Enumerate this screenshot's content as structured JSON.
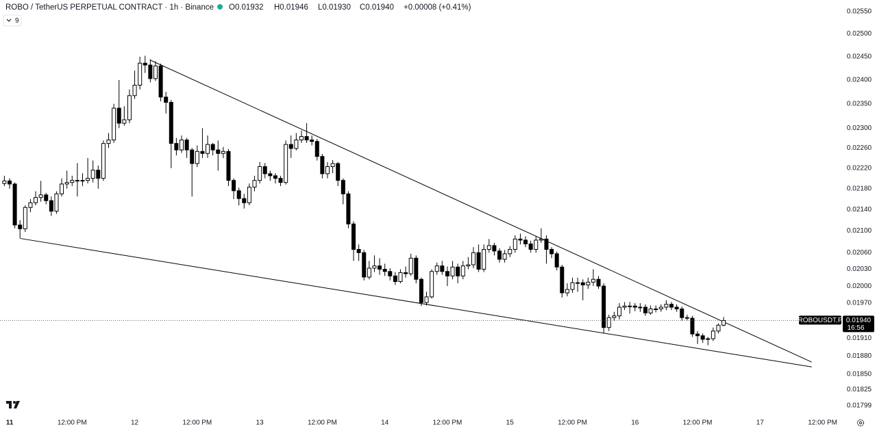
{
  "chart_data": {
    "type": "candlestick",
    "title": "ROBO / TetherUS PERPETUAL CONTRACT · 1h · Binance",
    "ohlc_labels": [
      "O0.01932",
      "H0.01946",
      "L0.01930",
      "C0.01940",
      "+0.00008 (+0.41%)"
    ],
    "indicator_toggle": "9",
    "symbol_label": "ROBOUSDT.P",
    "countdown": "16:56",
    "last_price": {
      "value": 0.0194,
      "label": "0.01940"
    },
    "log_scale": true,
    "grid": false,
    "up_color": "#ffffff",
    "down_color": "#000000",
    "wick_color": "#000000",
    "xlim": [
      -1.84,
      159.6
    ],
    "xticks": [
      {
        "value": 0,
        "label": "11"
      },
      {
        "value": 12,
        "label": "12:00 PM"
      },
      {
        "value": 24,
        "label": "12"
      },
      {
        "value": 36,
        "label": "12:00 PM"
      },
      {
        "value": 48,
        "label": "13"
      },
      {
        "value": 60,
        "label": "12:00 PM"
      },
      {
        "value": 72,
        "label": "14"
      },
      {
        "value": 84,
        "label": "12:00 PM"
      },
      {
        "value": 96,
        "label": "15"
      },
      {
        "value": 108,
        "label": "12:00 PM"
      },
      {
        "value": 120,
        "label": "16"
      },
      {
        "value": 132,
        "label": "12:00 PM"
      },
      {
        "value": 144,
        "label": "17"
      },
      {
        "value": 156,
        "label": "12:00 PM"
      }
    ],
    "ylim": [
      0.01785,
      0.02576
    ],
    "yticks": [
      {
        "value": 0.0255,
        "label": "0.02550"
      },
      {
        "value": 0.025,
        "label": "0.02500"
      },
      {
        "value": 0.0245,
        "label": "0.02450"
      },
      {
        "value": 0.024,
        "label": "0.02400"
      },
      {
        "value": 0.0235,
        "label": "0.02350"
      },
      {
        "value": 0.023,
        "label": "0.02300"
      },
      {
        "value": 0.0226,
        "label": "0.02260"
      },
      {
        "value": 0.0222,
        "label": "0.02220"
      },
      {
        "value": 0.0218,
        "label": "0.02180"
      },
      {
        "value": 0.0214,
        "label": "0.02140"
      },
      {
        "value": 0.021,
        "label": "0.02100"
      },
      {
        "value": 0.0206,
        "label": "0.02060"
      },
      {
        "value": 0.0203,
        "label": "0.02030"
      },
      {
        "value": 0.02,
        "label": "0.02000"
      },
      {
        "value": 0.0197,
        "label": "0.01970"
      },
      {
        "value": 0.0191,
        "label": "0.01910"
      },
      {
        "value": 0.0188,
        "label": "0.01880"
      },
      {
        "value": 0.0185,
        "label": "0.01850"
      },
      {
        "value": 0.01825,
        "label": "0.01825"
      },
      {
        "value": 0.01799,
        "label": "0.01799"
      }
    ],
    "x": [
      -1,
      0,
      1,
      2,
      3,
      4,
      5,
      6,
      7,
      8,
      9,
      10,
      11,
      12,
      13,
      14,
      15,
      16,
      17,
      18,
      19,
      20,
      21,
      22,
      23,
      24,
      25,
      26,
      27,
      28,
      29,
      30,
      31,
      32,
      33,
      34,
      35,
      36,
      37,
      38,
      39,
      40,
      41,
      42,
      43,
      44,
      45,
      46,
      47,
      48,
      49,
      50,
      51,
      52,
      53,
      54,
      55,
      56,
      57,
      58,
      59,
      60,
      61,
      62,
      63,
      64,
      65,
      66,
      67,
      68,
      69,
      70,
      71,
      72,
      73,
      74,
      75,
      76,
      77,
      78,
      79,
      80,
      81,
      82,
      83,
      84,
      85,
      86,
      87,
      88,
      89,
      90,
      91,
      92,
      93,
      94,
      95,
      96,
      97,
      98,
      99,
      100,
      101,
      102,
      103,
      104,
      105,
      106,
      107,
      108,
      109,
      110,
      111,
      112,
      113,
      114,
      115,
      116,
      117,
      118,
      119,
      120,
      121,
      122,
      123,
      124,
      125,
      126,
      127,
      128,
      129,
      130,
      131,
      132,
      133,
      134,
      135,
      136,
      137
    ],
    "open": [
      0.0219,
      0.02195,
      0.02189,
      0.02111,
      0.02104,
      0.02144,
      0.02153,
      0.02163,
      0.02168,
      0.02157,
      0.02137,
      0.0217,
      0.02189,
      0.02192,
      0.02196,
      0.02195,
      0.02196,
      0.022,
      0.02216,
      0.022,
      0.02269,
      0.02276,
      0.02341,
      0.0231,
      0.02317,
      0.02367,
      0.02389,
      0.02436,
      0.02432,
      0.02403,
      0.0243,
      0.02364,
      0.02353,
      0.02269,
      0.02256,
      0.02276,
      0.02256,
      0.02229,
      0.02253,
      0.02249,
      0.02267,
      0.02256,
      0.02249,
      0.02253,
      0.02196,
      0.02176,
      0.02161,
      0.02153,
      0.02183,
      0.02196,
      0.02223,
      0.02209,
      0.02205,
      0.022,
      0.02192,
      0.02267,
      0.02259,
      0.02276,
      0.02283,
      0.02276,
      0.02273,
      0.02243,
      0.02209,
      0.02223,
      0.02229,
      0.02196,
      0.0217,
      0.02113,
      0.02066,
      0.0206,
      0.02016,
      0.02032,
      0.02036,
      0.0203,
      0.02026,
      0.02018,
      0.02008,
      0.02024,
      0.02022,
      0.0205,
      0.02012,
      0.01971,
      0.01981,
      0.02026,
      0.02036,
      0.02026,
      0.02018,
      0.02034,
      0.02018,
      0.02036,
      0.02038,
      0.0206,
      0.0203,
      0.02066,
      0.02073,
      0.02063,
      0.02048,
      0.02058,
      0.02066,
      0.02085,
      0.02083,
      0.02076,
      0.02066,
      0.02083,
      0.02085,
      0.02066,
      0.02058,
      0.02034,
      0.01988,
      0.01994,
      0.02006,
      0.02006,
      0.02002,
      0.02007,
      0.02012,
      0.02,
      0.01928,
      0.01945,
      0.01948,
      0.01963,
      0.01965,
      0.01965,
      0.01963,
      0.01963,
      0.01953,
      0.0196,
      0.0196,
      0.01963,
      0.01968,
      0.01963,
      0.0196,
      0.01945,
      0.01944,
      0.01917,
      0.01914,
      0.01908,
      0.01909,
      0.01922,
      0.01932
    ],
    "high": [
      0.02205,
      0.022,
      0.02192,
      0.0212,
      0.02148,
      0.0216,
      0.02175,
      0.02195,
      0.02172,
      0.02165,
      0.02175,
      0.022,
      0.02215,
      0.02205,
      0.0223,
      0.0221,
      0.0224,
      0.02235,
      0.02225,
      0.02275,
      0.0229,
      0.0235,
      0.024,
      0.02345,
      0.0238,
      0.0242,
      0.0245,
      0.02452,
      0.02445,
      0.0244,
      0.02435,
      0.02375,
      0.02358,
      0.0228,
      0.02285,
      0.0228,
      0.0226,
      0.02265,
      0.023,
      0.02285,
      0.0227,
      0.02275,
      0.02262,
      0.02258,
      0.022,
      0.02182,
      0.0217,
      0.0219,
      0.02205,
      0.02232,
      0.0223,
      0.02215,
      0.0221,
      0.02205,
      0.02275,
      0.02285,
      0.0229,
      0.02295,
      0.0231,
      0.02285,
      0.02278,
      0.02248,
      0.02232,
      0.02236,
      0.02232,
      0.022,
      0.02175,
      0.02118,
      0.02075,
      0.02065,
      0.02045,
      0.02055,
      0.0205,
      0.0204,
      0.02032,
      0.02025,
      0.0203,
      0.02035,
      0.02058,
      0.02055,
      0.02015,
      0.0199,
      0.0203,
      0.02042,
      0.02045,
      0.02035,
      0.02045,
      0.0204,
      0.02045,
      0.02052,
      0.0207,
      0.02075,
      0.02075,
      0.02085,
      0.02078,
      0.02068,
      0.02065,
      0.02072,
      0.02092,
      0.02095,
      0.0209,
      0.02082,
      0.0209,
      0.02105,
      0.02092,
      0.0207,
      0.02062,
      0.02038,
      0.02005,
      0.02015,
      0.02015,
      0.02012,
      0.02015,
      0.0203,
      0.02018,
      0.02005,
      0.0195,
      0.01955,
      0.0197,
      0.01972,
      0.01972,
      0.0197,
      0.0197,
      0.01968,
      0.01966,
      0.01966,
      0.01968,
      0.01975,
      0.01972,
      0.01968,
      0.01964,
      0.0195,
      0.01948,
      0.01922,
      0.01918,
      0.01912,
      0.01928,
      0.01935,
      0.01946
    ],
    "low": [
      0.02185,
      0.0218,
      0.02105,
      0.02086,
      0.02098,
      0.02135,
      0.02148,
      0.02155,
      0.0215,
      0.02128,
      0.02132,
      0.02165,
      0.0218,
      0.02185,
      0.02165,
      0.02185,
      0.0219,
      0.02192,
      0.0218,
      0.02195,
      0.0226,
      0.0227,
      0.023,
      0.02305,
      0.0231,
      0.0236,
      0.0238,
      0.02415,
      0.02395,
      0.02398,
      0.02355,
      0.0233,
      0.0222,
      0.02245,
      0.0225,
      0.0224,
      0.02165,
      0.02222,
      0.0224,
      0.0224,
      0.02245,
      0.02215,
      0.0224,
      0.02185,
      0.0216,
      0.02148,
      0.02142,
      0.02148,
      0.02175,
      0.0219,
      0.022,
      0.02195,
      0.0219,
      0.02185,
      0.02188,
      0.0224,
      0.02255,
      0.0227,
      0.0227,
      0.02265,
      0.02235,
      0.022,
      0.022,
      0.0221,
      0.02185,
      0.0215,
      0.02105,
      0.02045,
      0.02045,
      0.0201,
      0.02012,
      0.02025,
      0.0202,
      0.02018,
      0.0201,
      0.02002,
      0.02005,
      0.02015,
      0.02018,
      0.02005,
      0.01965,
      0.01966,
      0.01978,
      0.0202,
      0.0202,
      0.02,
      0.02012,
      0.02005,
      0.02012,
      0.0203,
      0.02032,
      0.02025,
      0.02025,
      0.0206,
      0.02055,
      0.02042,
      0.02042,
      0.02052,
      0.0206,
      0.02075,
      0.0207,
      0.0206,
      0.0206,
      0.02078,
      0.0204,
      0.0205,
      0.02028,
      0.0198,
      0.01982,
      0.01988,
      0.0199,
      0.01975,
      0.01995,
      0.02,
      0.01995,
      0.01918,
      0.01922,
      0.0194,
      0.01942,
      0.01958,
      0.01952,
      0.01956,
      0.01955,
      0.01948,
      0.0195,
      0.01954,
      0.01955,
      0.01958,
      0.01958,
      0.01955,
      0.0194,
      0.0194,
      0.01912,
      0.019,
      0.01902,
      0.01898,
      0.01905,
      0.01918,
      0.0193
    ],
    "close": [
      0.02195,
      0.02189,
      0.02111,
      0.02104,
      0.02144,
      0.02153,
      0.02163,
      0.02168,
      0.02157,
      0.02137,
      0.0217,
      0.02189,
      0.02192,
      0.02196,
      0.02195,
      0.02196,
      0.022,
      0.02216,
      0.022,
      0.02269,
      0.02276,
      0.02341,
      0.0231,
      0.02317,
      0.02367,
      0.02389,
      0.02436,
      0.02432,
      0.02403,
      0.0243,
      0.02364,
      0.02353,
      0.02269,
      0.02256,
      0.02276,
      0.02256,
      0.02229,
      0.02253,
      0.02249,
      0.02267,
      0.02256,
      0.02249,
      0.02253,
      0.02196,
      0.02176,
      0.02161,
      0.02153,
      0.02183,
      0.02196,
      0.02223,
      0.02209,
      0.02205,
      0.022,
      0.02192,
      0.02267,
      0.02259,
      0.02276,
      0.02283,
      0.02276,
      0.02273,
      0.02243,
      0.02209,
      0.02223,
      0.02229,
      0.02196,
      0.0217,
      0.02113,
      0.02066,
      0.0206,
      0.02016,
      0.02032,
      0.02036,
      0.0203,
      0.02026,
      0.02018,
      0.02008,
      0.02024,
      0.02022,
      0.0205,
      0.02012,
      0.01971,
      0.01981,
      0.02026,
      0.02036,
      0.02026,
      0.02018,
      0.02034,
      0.02018,
      0.02036,
      0.02038,
      0.0206,
      0.0203,
      0.02066,
      0.02073,
      0.02063,
      0.02048,
      0.02058,
      0.02066,
      0.02085,
      0.02083,
      0.02076,
      0.02066,
      0.02083,
      0.02085,
      0.02066,
      0.02058,
      0.02034,
      0.01988,
      0.01994,
      0.02006,
      0.02006,
      0.02002,
      0.02007,
      0.02012,
      0.02,
      0.01928,
      0.01945,
      0.01948,
      0.01963,
      0.01965,
      0.01965,
      0.01963,
      0.01963,
      0.01953,
      0.0196,
      0.0196,
      0.01963,
      0.01968,
      0.01963,
      0.0196,
      0.01945,
      0.01944,
      0.01917,
      0.01914,
      0.01908,
      0.01909,
      0.01922,
      0.01932,
      0.0194
    ],
    "trendlines": [
      {
        "color": "#000000",
        "x": [
          27.1,
          153.9
        ],
        "values": [
          0.02442,
          0.0187
        ]
      },
      {
        "color": "#000000",
        "x": [
          2.1,
          153.9
        ],
        "values": [
          0.02086,
          0.01862
        ]
      }
    ]
  }
}
